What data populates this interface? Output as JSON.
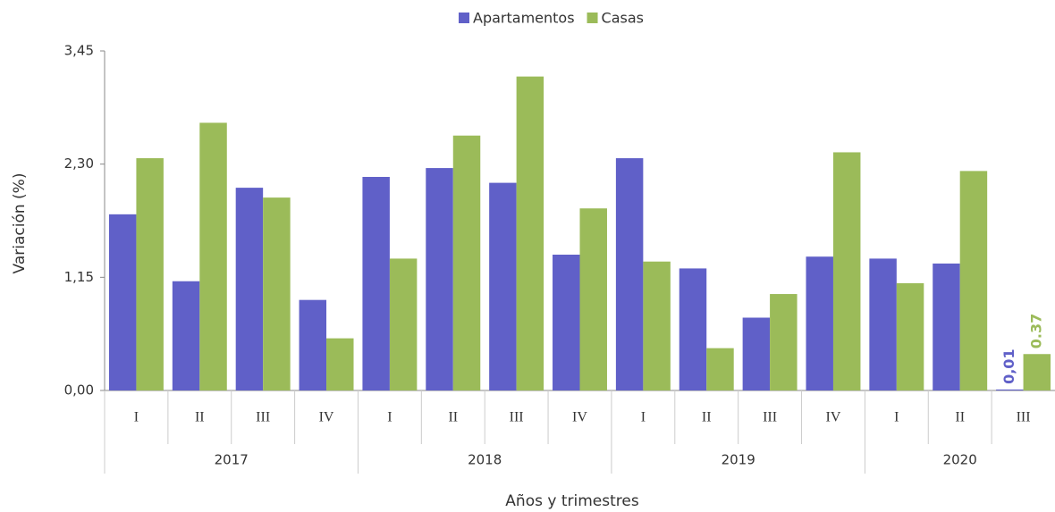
{
  "chart_data": {
    "type": "bar",
    "x_label": "Años y trimestres",
    "y_label": "Variación (%)",
    "groups": [
      {
        "name": "2017",
        "categories": [
          "I",
          "II",
          "III",
          "IV"
        ]
      },
      {
        "name": "2018",
        "categories": [
          "I",
          "II",
          "III",
          "IV"
        ]
      },
      {
        "name": "2019",
        "categories": [
          "I",
          "II",
          "III",
          "IV"
        ]
      },
      {
        "name": "2020",
        "categories": [
          "I",
          "II",
          "III"
        ]
      }
    ],
    "series": [
      {
        "name": "Apartamentos",
        "color": "#6060c8",
        "values": [
          1.79,
          1.11,
          2.06,
          0.92,
          2.17,
          2.26,
          2.11,
          1.38,
          2.36,
          1.24,
          0.74,
          1.36,
          1.34,
          1.29,
          0.01
        ],
        "value_labels": [
          null,
          null,
          null,
          null,
          null,
          null,
          null,
          null,
          null,
          null,
          null,
          null,
          null,
          null,
          "0,01"
        ]
      },
      {
        "name": "Casas",
        "color": "#9bbb59",
        "values": [
          2.36,
          2.72,
          1.96,
          0.53,
          1.34,
          2.59,
          3.19,
          1.85,
          1.31,
          0.43,
          0.98,
          2.42,
          1.09,
          2.23,
          0.37
        ],
        "value_labels": [
          null,
          null,
          null,
          null,
          null,
          null,
          null,
          null,
          null,
          null,
          null,
          null,
          null,
          null,
          "0.37"
        ]
      }
    ],
    "ylim": [
      0,
      3.45
    ],
    "yticks": [
      {
        "value": 0,
        "label": "0,00"
      },
      {
        "value": 1.15,
        "label": "1,15"
      },
      {
        "value": 2.3,
        "label": "2,30"
      },
      {
        "value": 3.45,
        "label": "3,45"
      }
    ],
    "legend": "top",
    "grid": false
  }
}
